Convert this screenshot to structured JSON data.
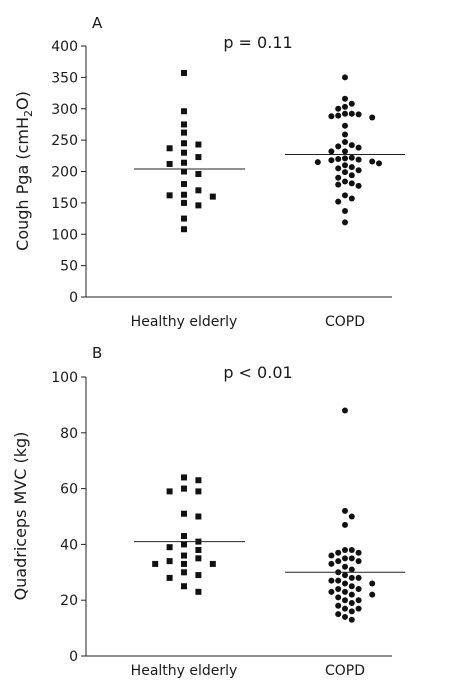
{
  "chart_data": [
    {
      "type": "scatter",
      "panel": "A",
      "annotation": "p = 0.11",
      "ylabel": "Cough Pga (cmH2O)",
      "ylim": [
        0,
        400
      ],
      "yticks": [
        0,
        50,
        100,
        150,
        200,
        250,
        300,
        350,
        400
      ],
      "categories": [
        "Healthy elderly",
        "COPD"
      ],
      "series": [
        {
          "category": "Healthy elderly",
          "marker": "square",
          "mean": 204,
          "values": [
            357,
            296,
            275,
            262,
            245,
            243,
            237,
            230,
            223,
            214,
            212,
            200,
            196,
            180,
            170,
            163,
            162,
            160,
            150,
            146,
            125,
            108
          ]
        },
        {
          "category": "COPD",
          "marker": "circle",
          "mean": 227,
          "values": [
            350,
            316,
            308,
            303,
            300,
            292,
            292,
            291,
            289,
            288,
            286,
            273,
            259,
            247,
            242,
            240,
            238,
            232,
            232,
            222,
            221,
            220,
            219,
            218,
            216,
            215,
            213,
            210,
            207,
            205,
            202,
            199,
            194,
            190,
            184,
            181,
            179,
            177,
            162,
            157,
            152,
            137,
            119
          ]
        }
      ]
    },
    {
      "type": "scatter",
      "panel": "B",
      "annotation": "p < 0.01",
      "ylabel": "Quadriceps MVC (kg)",
      "ylim": [
        0,
        100
      ],
      "yticks": [
        0,
        20,
        40,
        60,
        80,
        100
      ],
      "categories": [
        "Healthy elderly",
        "COPD"
      ],
      "series": [
        {
          "category": "Healthy elderly",
          "marker": "square",
          "mean": 41,
          "values": [
            64,
            63,
            60,
            59,
            59,
            51,
            50,
            43,
            41,
            40,
            39,
            38,
            36,
            35,
            34,
            33,
            33,
            33,
            30,
            29,
            28,
            25,
            23
          ]
        },
        {
          "category": "COPD",
          "marker": "circle",
          "mean": 30,
          "values": [
            88,
            52,
            50,
            47,
            38,
            38,
            37,
            37,
            36,
            35,
            35,
            34,
            34,
            33,
            32,
            31,
            30,
            29,
            28,
            28,
            27,
            27,
            26,
            26,
            25,
            24,
            24,
            23,
            23,
            22,
            22,
            21,
            20,
            20,
            19,
            18,
            17,
            17,
            16,
            15,
            14,
            13
          ]
        }
      ]
    }
  ]
}
